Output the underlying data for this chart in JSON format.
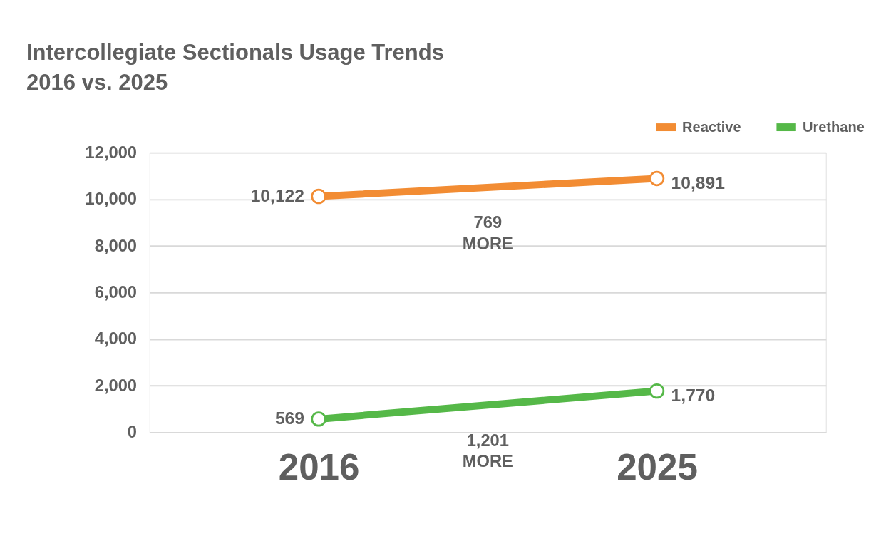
{
  "chart_data": {
    "type": "line",
    "title": [
      "Intercollegiate Sectionals Usage Trends",
      "2016 vs. 2025"
    ],
    "categories": [
      "2016",
      "2025"
    ],
    "series": [
      {
        "name": "Reactive",
        "color": "#f28c33",
        "values": [
          10122,
          10891
        ],
        "value_labels": [
          "10,122",
          "10,891"
        ]
      },
      {
        "name": "Urethane",
        "color": "#55b848",
        "values": [
          569,
          1770
        ],
        "value_labels": [
          "569",
          "1,770"
        ]
      }
    ],
    "ylim": [
      0,
      12000
    ],
    "yticks": [
      0,
      {
        "value": 2000,
        "label": "2,000"
      },
      {
        "value": 4000,
        "label": "4,000"
      },
      {
        "value": 6000,
        "label": "6,000"
      },
      {
        "value": 8000,
        "label": "8,000"
      },
      {
        "value": 10000,
        "label": "10,000"
      },
      {
        "value": 12000,
        "label": "12,000"
      }
    ],
    "grid": "y",
    "legend": "top right",
    "marker": "circle",
    "line_style": "solid",
    "annotations": [
      "769\nMORE",
      "1,201\nMORE"
    ]
  }
}
